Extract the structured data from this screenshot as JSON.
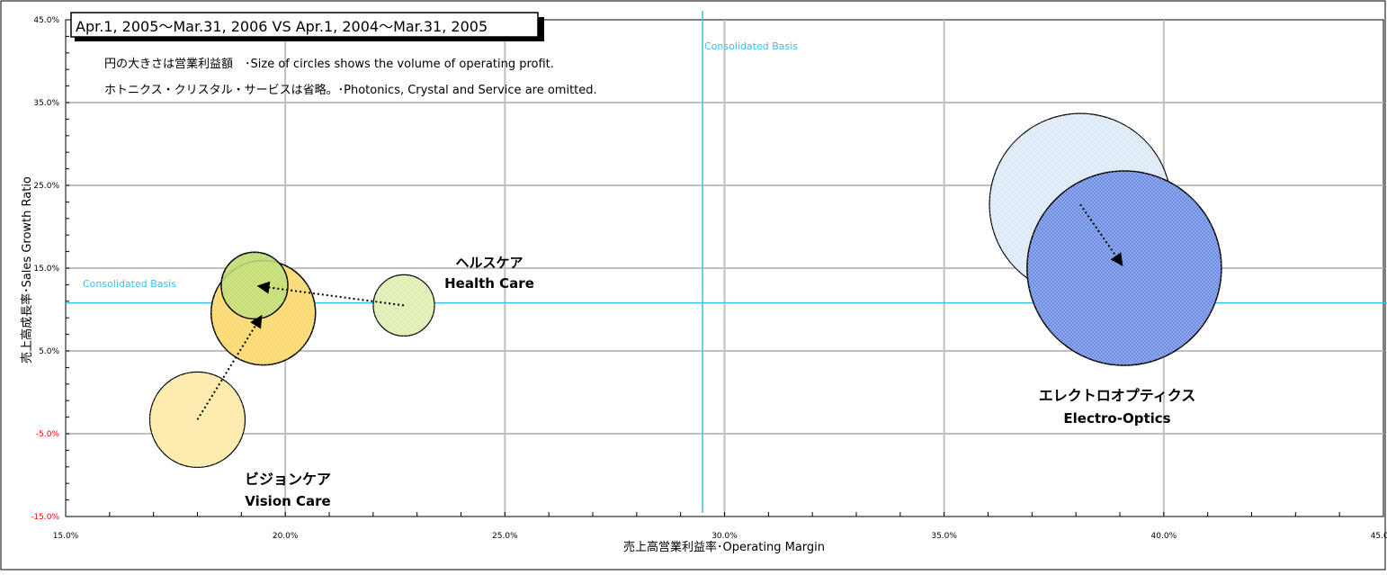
{
  "chart_data": {
    "type": "scatter",
    "title": "Apr.1, 2005～Mar.31, 2006 VS Apr.1, 2004～Mar.31, 2005",
    "notes": [
      "円の大きさは営業利益額　･Size of circles shows the volume of operating profit.",
      "ホトニクス・クリスタル・サービスは省略。･Photonics, Crystal and Service are omitted."
    ],
    "xlabel": "売上高営業利益率･Operating Margin",
    "ylabel": "売上高成長率･Sales Growth Ratio",
    "xlim": [
      15,
      45
    ],
    "ylim": [
      -15,
      45
    ],
    "x_ticks": [
      "15.0%",
      "20.0%",
      "25.0%",
      "30.0%",
      "35.0%",
      "40.0%",
      "45.0%"
    ],
    "y_ticks": [
      "-15.0%",
      "-5.0%",
      "5.0%",
      "15.0%",
      "25.0%",
      "35.0%",
      "45.0%"
    ],
    "grid": true,
    "reference_lines": {
      "x": 29.5,
      "y": 10.8,
      "x_label": "Consolidated  Basis",
      "y_label": "Consolidated  Basis"
    },
    "series": [
      {
        "label_jp": "エレクトロオプティクス",
        "label_en": "Electro-Optics",
        "previous": {
          "x": 38.1,
          "y": 22.7
        },
        "current": {
          "x": 39.1,
          "y": 15.0
        },
        "prev_fill": "#dde9f7",
        "curr_fill": "#6f8fe6"
      },
      {
        "label_jp": "ヘルスケア",
        "label_en": "Health Care",
        "previous": {
          "x": 22.7,
          "y": 10.5
        },
        "current": {
          "x": 19.3,
          "y": 12.9
        },
        "prev_fill": "#dceeb0",
        "curr_fill": "#b8dc6a"
      },
      {
        "label_jp": "ビジョンケア",
        "label_en": "Vision Care",
        "previous": {
          "x": 18.0,
          "y": -3.3
        },
        "current": {
          "x": 19.5,
          "y": 9.6
        },
        "prev_fill": "#fdeaa6",
        "curr_fill": "#fbd86a"
      }
    ],
    "colors": {
      "reference": "#33c3ee",
      "negative_tick": "#ff0000",
      "grid": "#c0c0c0"
    }
  }
}
